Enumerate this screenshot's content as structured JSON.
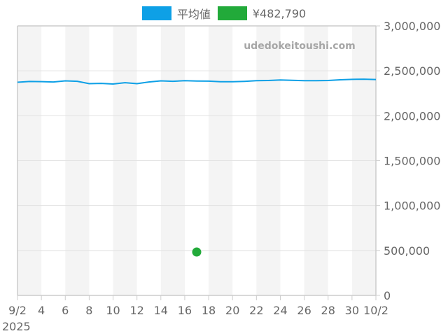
{
  "chart_data": {
    "type": "line",
    "title": "",
    "xlabel": "",
    "ylabel": "",
    "ylim": [
      0,
      3000000
    ],
    "y_ticks": [
      0,
      500000,
      1000000,
      1500000,
      2000000,
      2500000,
      3000000
    ],
    "y_tick_labels": [
      "0",
      "500,000",
      "1,000,000",
      "1,500,000",
      "2,000,000",
      "2,500,000",
      "3,000,000"
    ],
    "y_axis_position": "right",
    "x_tick_labels": [
      "9/2",
      "4",
      "6",
      "8",
      "10",
      "12",
      "14",
      "16",
      "18",
      "20",
      "22",
      "24",
      "26",
      "28",
      "30",
      "10/2"
    ],
    "x_sub_label": "2025",
    "x_range_days": 30,
    "grid": true,
    "alternating_bands": true,
    "legend_position": "top",
    "watermark": "udedokeitoushi.com",
    "series": [
      {
        "name": "平均値",
        "color": "#0ea0e6",
        "kind": "line",
        "x_days": [
          0,
          1,
          2,
          3,
          4,
          5,
          6,
          7,
          8,
          9,
          10,
          11,
          12,
          13,
          14,
          15,
          16,
          17,
          18,
          19,
          20,
          21,
          22,
          23,
          24,
          25,
          26,
          27,
          28,
          29,
          30
        ],
        "values": [
          2373000,
          2381000,
          2380000,
          2376000,
          2388000,
          2384000,
          2357000,
          2360000,
          2353000,
          2368000,
          2357000,
          2376000,
          2388000,
          2384000,
          2390000,
          2387000,
          2385000,
          2378000,
          2378000,
          2383000,
          2390000,
          2392000,
          2398000,
          2394000,
          2390000,
          2390000,
          2392000,
          2400000,
          2405000,
          2407000,
          2403000
        ]
      },
      {
        "name": "¥482,790",
        "color": "#22aa3a",
        "kind": "point",
        "x_days": [
          15
        ],
        "values": [
          482790
        ]
      }
    ]
  },
  "legend": {
    "items": [
      {
        "label": "平均値",
        "color": "#0ea0e6"
      },
      {
        "label": "¥482,790",
        "color": "#22aa3a"
      }
    ]
  }
}
